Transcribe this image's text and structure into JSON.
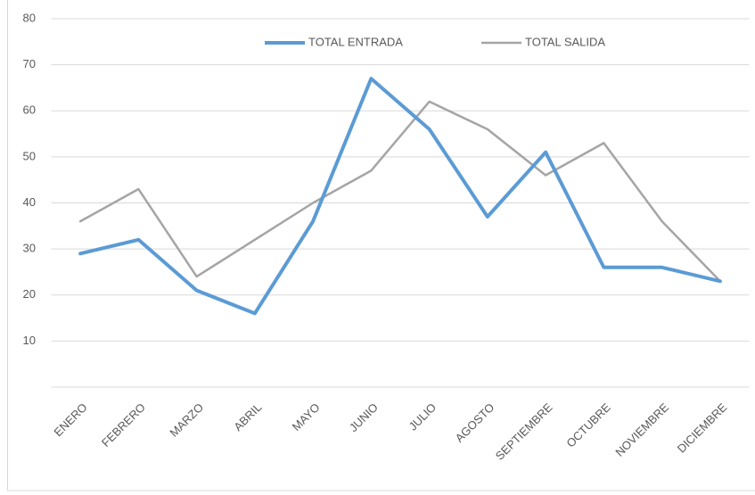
{
  "chart_data": {
    "type": "line",
    "categories": [
      "ENERO",
      "FEBRERO",
      "MARZO",
      "ABRIL",
      "MAYO",
      "JUNIO",
      "JULIO",
      "AGOSTO",
      "SEPTIEMBRE",
      "OCTUBRE",
      "NOVIEMBRE",
      "DICIEMBRE"
    ],
    "series": [
      {
        "name": "TOTAL ENTRADA",
        "color": "#5b9bd5",
        "values": [
          29,
          32,
          21,
          16,
          36,
          67,
          56,
          37,
          51,
          26,
          26,
          23
        ]
      },
      {
        "name": "TOTAL SALIDA",
        "color": "#a5a5a5",
        "values": [
          36,
          43,
          24,
          32,
          40,
          47,
          62,
          56,
          46,
          53,
          36,
          23
        ]
      }
    ],
    "ylim": [
      0,
      80
    ],
    "yticks": [
      10,
      20,
      30,
      40,
      50,
      60,
      70,
      80
    ],
    "grid": true,
    "legend": "top"
  }
}
